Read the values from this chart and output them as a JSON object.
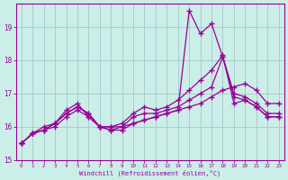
{
  "xlabel": "Windchill (Refroidissement éolien,°C)",
  "x": [
    0,
    1,
    2,
    3,
    4,
    5,
    6,
    7,
    8,
    9,
    10,
    11,
    12,
    13,
    14,
    15,
    16,
    17,
    18,
    19,
    20,
    21,
    22,
    23
  ],
  "line1": [
    15.5,
    15.8,
    15.9,
    16.1,
    16.4,
    16.6,
    16.4,
    16.0,
    16.0,
    16.0,
    16.3,
    16.4,
    16.4,
    16.5,
    16.6,
    16.8,
    17.0,
    17.2,
    18.1,
    16.9,
    16.8,
    16.6,
    16.3,
    16.3
  ],
  "line2": [
    15.5,
    15.8,
    15.9,
    16.1,
    16.5,
    16.7,
    16.3,
    16.0,
    15.9,
    15.9,
    16.1,
    16.2,
    16.3,
    16.4,
    16.5,
    19.5,
    18.8,
    19.1,
    18.1,
    17.0,
    16.9,
    16.7,
    16.4,
    16.4
  ],
  "line3": [
    15.5,
    15.8,
    16.0,
    16.1,
    16.4,
    16.6,
    16.4,
    16.0,
    16.0,
    16.1,
    16.4,
    16.6,
    16.5,
    16.6,
    16.8,
    17.1,
    17.4,
    17.7,
    18.15,
    16.7,
    16.8,
    16.6,
    16.3,
    16.3
  ],
  "line4": [
    15.5,
    15.8,
    15.9,
    16.0,
    16.3,
    16.5,
    16.3,
    16.0,
    15.9,
    16.0,
    16.1,
    16.2,
    16.3,
    16.4,
    16.5,
    16.6,
    16.7,
    16.9,
    17.1,
    17.2,
    17.3,
    17.1,
    16.7,
    16.7
  ],
  "bg_color": "#cceee8",
  "grid_color": "#aacccc",
  "line_color": "#990099",
  "ylim": [
    15.0,
    19.7
  ],
  "yticks": [
    15,
    16,
    17,
    18,
    19
  ],
  "xticks": [
    0,
    1,
    2,
    3,
    4,
    5,
    6,
    7,
    8,
    9,
    10,
    11,
    12,
    13,
    14,
    15,
    16,
    17,
    18,
    19,
    20,
    21,
    22,
    23
  ]
}
